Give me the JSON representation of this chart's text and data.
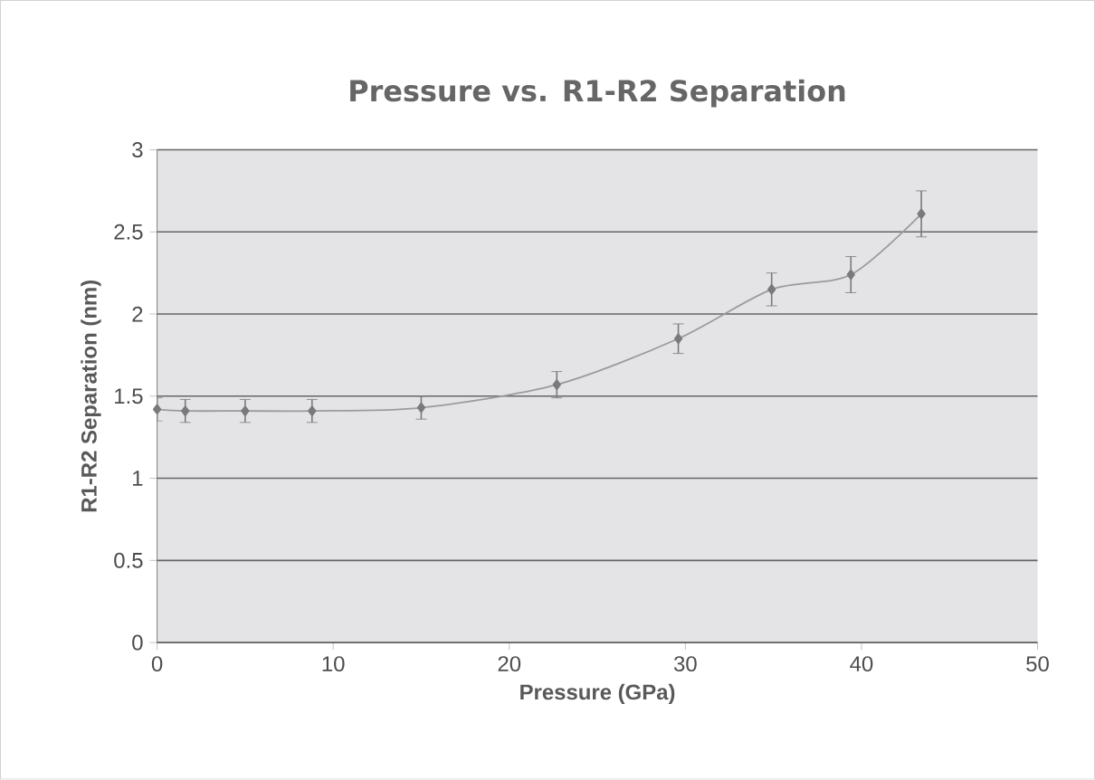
{
  "chart_data": {
    "type": "line",
    "title": "Pressure vs. R1-R2 Separation",
    "xlabel": "Pressure (GPa)",
    "ylabel": "R1-R2 Separation (nm)",
    "x": [
      0.0,
      1.6,
      5.0,
      8.8,
      15.0,
      22.7,
      29.6,
      34.9,
      39.4,
      43.4
    ],
    "values": [
      1.42,
      1.41,
      1.41,
      1.41,
      1.43,
      1.57,
      1.85,
      2.15,
      2.24,
      2.61
    ],
    "errors": [
      0.07,
      0.07,
      0.07,
      0.07,
      0.07,
      0.08,
      0.09,
      0.1,
      0.11,
      0.14
    ],
    "color": "#7a7a7a",
    "xlim": [
      0,
      50
    ],
    "xticks": [
      0,
      10,
      20,
      30,
      40,
      50
    ],
    "ylim": [
      0,
      3
    ],
    "yticks": [
      0,
      0.5,
      1,
      1.5,
      2,
      2.5,
      3
    ],
    "grid": "y",
    "marker": "diamond",
    "line_style": "solid"
  }
}
